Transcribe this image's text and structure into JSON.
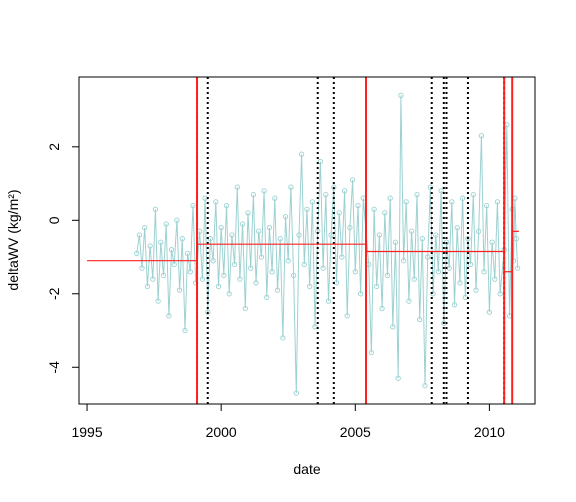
{
  "chart_data": {
    "type": "line",
    "title": "",
    "xlabel": "date",
    "ylabel": "deltaWV (kg/m²)",
    "xlim": [
      1994.7,
      2011.7
    ],
    "ylim": [
      -5,
      3.9
    ],
    "x_ticks": [
      1995,
      2000,
      2005,
      2010
    ],
    "x_tick_labels": [
      "1995",
      "2000",
      "2005",
      "2010"
    ],
    "y_ticks": [
      -4,
      -2,
      0,
      2
    ],
    "y_tick_labels": [
      "-4",
      "-2",
      "0",
      "2"
    ],
    "grid": false,
    "legend": "none",
    "colors": {
      "series": "#9dd1d1",
      "breakpoint": "#ff2020",
      "step": "#ff2020",
      "candidate": "#000000"
    },
    "series": [
      {
        "style": "line-with-points",
        "points": [
          [
            1996.85,
            -0.9
          ],
          [
            1996.95,
            -0.4
          ],
          [
            1997.05,
            -1.3
          ],
          [
            1997.15,
            -0.2
          ],
          [
            1997.25,
            -1.8
          ],
          [
            1997.35,
            -0.7
          ],
          [
            1997.45,
            -1.6
          ],
          [
            1997.55,
            0.3
          ],
          [
            1997.65,
            -2.2
          ],
          [
            1997.75,
            -0.6
          ],
          [
            1997.85,
            -1.5
          ],
          [
            1997.95,
            -0.1
          ],
          [
            1998.05,
            -2.6
          ],
          [
            1998.15,
            -0.8
          ],
          [
            1998.25,
            -1.2
          ],
          [
            1998.35,
            0.0
          ],
          [
            1998.45,
            -1.9
          ],
          [
            1998.55,
            -0.5
          ],
          [
            1998.65,
            -3.0
          ],
          [
            1998.75,
            -0.9
          ],
          [
            1998.85,
            -1.4
          ],
          [
            1998.95,
            0.4
          ],
          [
            1999.05,
            -1.7
          ],
          [
            1999.2,
            -0.3
          ],
          [
            1999.3,
            -1.6
          ],
          [
            1999.4,
            0.6
          ],
          [
            1999.5,
            -2.5
          ],
          [
            1999.6,
            -0.5
          ],
          [
            1999.7,
            -1.1
          ],
          [
            1999.8,
            0.5
          ],
          [
            1999.9,
            -1.8
          ],
          [
            2000.0,
            -0.2
          ],
          [
            2000.1,
            -1.5
          ],
          [
            2000.2,
            0.4
          ],
          [
            2000.3,
            -2.0
          ],
          [
            2000.4,
            -0.4
          ],
          [
            2000.5,
            -1.2
          ],
          [
            2000.6,
            0.9
          ],
          [
            2000.7,
            -1.6
          ],
          [
            2000.8,
            -0.1
          ],
          [
            2000.9,
            -2.4
          ],
          [
            2001.0,
            0.2
          ],
          [
            2001.1,
            -1.3
          ],
          [
            2001.2,
            0.7
          ],
          [
            2001.3,
            -1.7
          ],
          [
            2001.4,
            -0.3
          ],
          [
            2001.5,
            -1.0
          ],
          [
            2001.6,
            0.8
          ],
          [
            2001.7,
            -2.1
          ],
          [
            2001.8,
            -0.2
          ],
          [
            2001.9,
            -1.4
          ],
          [
            2002.0,
            0.6
          ],
          [
            2002.1,
            -1.9
          ],
          [
            2002.2,
            -0.5
          ],
          [
            2002.3,
            -3.2
          ],
          [
            2002.4,
            0.1
          ],
          [
            2002.5,
            -1.1
          ],
          [
            2002.6,
            0.9
          ],
          [
            2002.7,
            -1.5
          ],
          [
            2002.8,
            -4.7
          ],
          [
            2002.9,
            -0.4
          ],
          [
            2003.0,
            1.8
          ],
          [
            2003.1,
            -1.2
          ],
          [
            2003.2,
            0.3
          ],
          [
            2003.3,
            -1.8
          ],
          [
            2003.4,
            0.5
          ],
          [
            2003.5,
            -2.9
          ],
          [
            2003.6,
            -0.3
          ],
          [
            2003.7,
            1.6
          ],
          [
            2003.8,
            -1.3
          ],
          [
            2003.9,
            0.7
          ],
          [
            2004.0,
            -2.2
          ],
          [
            2004.1,
            -0.4
          ],
          [
            2004.2,
            0.9
          ],
          [
            2004.3,
            -1.7
          ],
          [
            2004.4,
            0.2
          ],
          [
            2004.5,
            -1.0
          ],
          [
            2004.6,
            0.8
          ],
          [
            2004.7,
            -2.6
          ],
          [
            2004.8,
            -0.2
          ],
          [
            2004.9,
            1.1
          ],
          [
            2005.0,
            -1.4
          ],
          [
            2005.1,
            0.4
          ],
          [
            2005.2,
            -2.0
          ],
          [
            2005.3,
            0.6
          ],
          [
            2005.5,
            -1.2
          ],
          [
            2005.6,
            -3.6
          ],
          [
            2005.7,
            0.3
          ],
          [
            2005.8,
            -1.8
          ],
          [
            2005.9,
            -0.4
          ],
          [
            2006.0,
            -2.4
          ],
          [
            2006.1,
            0.2
          ],
          [
            2006.2,
            -1.5
          ],
          [
            2006.3,
            0.6
          ],
          [
            2006.4,
            -2.9
          ],
          [
            2006.5,
            -0.6
          ],
          [
            2006.6,
            -4.3
          ],
          [
            2006.7,
            3.4
          ],
          [
            2006.8,
            -1.1
          ],
          [
            2006.9,
            0.5
          ],
          [
            2007.0,
            -2.2
          ],
          [
            2007.1,
            -0.3
          ],
          [
            2007.2,
            -1.6
          ],
          [
            2007.3,
            0.7
          ],
          [
            2007.4,
            -2.7
          ],
          [
            2007.5,
            -0.5
          ],
          [
            2007.6,
            -4.5
          ],
          [
            2007.7,
            -1.0
          ],
          [
            2007.8,
            0.9
          ],
          [
            2007.9,
            -2.0
          ],
          [
            2008.0,
            -0.4
          ],
          [
            2008.1,
            -1.4
          ],
          [
            2008.2,
            0.8
          ],
          [
            2008.3,
            -2.8
          ],
          [
            2008.4,
            -0.6
          ],
          [
            2008.5,
            -1.3
          ],
          [
            2008.6,
            0.5
          ],
          [
            2008.7,
            -2.3
          ],
          [
            2008.8,
            -0.2
          ],
          [
            2008.9,
            -1.7
          ],
          [
            2009.0,
            0.6
          ],
          [
            2009.1,
            -2.1
          ],
          [
            2009.2,
            -0.5
          ],
          [
            2009.3,
            -1.2
          ],
          [
            2009.4,
            0.7
          ],
          [
            2009.5,
            -1.9
          ],
          [
            2009.6,
            -0.3
          ],
          [
            2009.7,
            2.3
          ],
          [
            2009.8,
            -1.4
          ],
          [
            2009.9,
            0.4
          ],
          [
            2010.0,
            -2.5
          ],
          [
            2010.1,
            -0.6
          ],
          [
            2010.2,
            -1.6
          ],
          [
            2010.3,
            0.5
          ],
          [
            2010.4,
            -2.0
          ],
          [
            2010.55,
            -0.8
          ],
          [
            2010.65,
            2.6
          ],
          [
            2010.75,
            -2.6
          ],
          [
            2010.85,
            0.3
          ],
          [
            2010.9,
            -1.1
          ],
          [
            2010.95,
            0.6
          ],
          [
            2011.0,
            -0.5
          ],
          [
            2011.05,
            -1.3
          ]
        ]
      }
    ],
    "step_function": [
      {
        "x_start": 1995.0,
        "x_end": 1999.1,
        "y": -1.1
      },
      {
        "x_start": 1999.1,
        "x_end": 2005.4,
        "y": -0.65
      },
      {
        "x_start": 2005.4,
        "x_end": 2010.55,
        "y": -0.85
      },
      {
        "x_start": 2010.55,
        "x_end": 2010.85,
        "y": -1.4
      },
      {
        "x_start": 2010.85,
        "x_end": 2011.1,
        "y": -0.3
      }
    ],
    "breakpoints": [
      1999.1,
      2005.4,
      2010.55,
      2010.85
    ],
    "candidate_breakpoints": [
      1999.1,
      1999.5,
      2003.6,
      2004.2,
      2007.85,
      2008.3,
      2008.4,
      2009.2,
      2010.55
    ]
  }
}
